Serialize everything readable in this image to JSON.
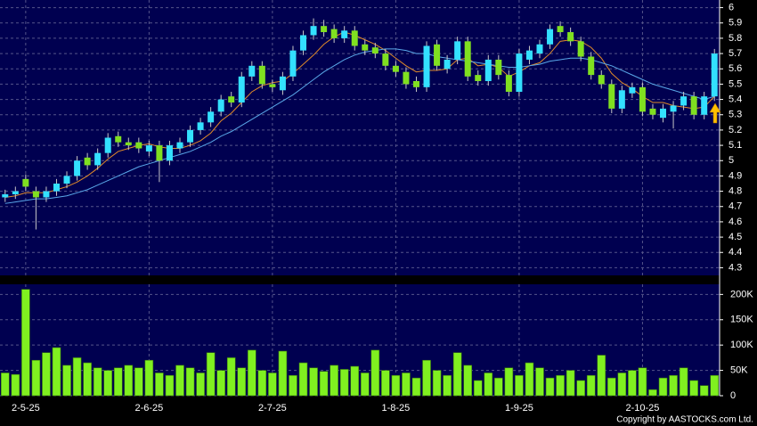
{
  "chart_data": [
    {
      "type": "candlestick",
      "open": [
        4.76,
        4.78,
        4.88,
        4.8,
        4.76,
        4.8,
        4.85,
        4.9,
        5.02,
        4.97,
        5.05,
        5.16,
        5.12,
        5.12,
        5.06,
        5.1,
        5.0,
        5.08,
        5.12,
        5.2,
        5.25,
        5.32,
        5.42,
        5.38,
        5.55,
        5.62,
        5.5,
        5.46,
        5.55,
        5.72,
        5.82,
        5.88,
        5.86,
        5.8,
        5.85,
        5.76,
        5.74,
        5.7,
        5.62,
        5.58,
        5.52,
        5.48,
        5.76,
        5.6,
        5.66,
        5.78,
        5.56,
        5.52,
        5.66,
        5.56,
        5.45,
        5.66,
        5.7,
        5.76,
        5.88,
        5.84,
        5.78,
        5.68,
        5.56,
        5.5,
        5.34,
        5.44,
        5.48,
        5.34,
        5.28,
        5.32,
        5.36,
        5.42,
        5.3,
        5.42
      ],
      "high": [
        4.81,
        4.83,
        4.91,
        4.83,
        4.83,
        4.88,
        4.93,
        5.03,
        5.05,
        5.08,
        5.18,
        5.19,
        5.15,
        5.15,
        5.13,
        5.13,
        5.13,
        5.15,
        5.23,
        5.28,
        5.35,
        5.43,
        5.45,
        5.58,
        5.65,
        5.65,
        5.53,
        5.58,
        5.75,
        5.85,
        5.93,
        5.92,
        5.89,
        5.88,
        5.88,
        5.79,
        5.77,
        5.73,
        5.65,
        5.61,
        5.55,
        5.78,
        5.79,
        5.69,
        5.81,
        5.81,
        5.59,
        5.69,
        5.69,
        5.59,
        5.73,
        5.75,
        5.79,
        5.89,
        5.91,
        5.87,
        5.81,
        5.71,
        5.59,
        5.53,
        5.49,
        5.51,
        5.51,
        5.37,
        5.37,
        5.39,
        5.45,
        5.45,
        5.45,
        5.73
      ],
      "low": [
        4.73,
        4.75,
        4.8,
        4.55,
        4.73,
        4.77,
        4.82,
        4.87,
        4.94,
        4.94,
        5.02,
        5.09,
        5.07,
        5.05,
        5.03,
        4.86,
        4.97,
        5.05,
        5.09,
        5.17,
        5.22,
        5.29,
        5.35,
        5.35,
        5.52,
        5.47,
        5.45,
        5.43,
        5.52,
        5.69,
        5.79,
        5.81,
        5.77,
        5.77,
        5.72,
        5.69,
        5.67,
        5.59,
        5.55,
        5.47,
        5.45,
        5.45,
        5.59,
        5.57,
        5.63,
        5.52,
        5.49,
        5.49,
        5.53,
        5.42,
        5.42,
        5.63,
        5.67,
        5.73,
        5.81,
        5.75,
        5.65,
        5.53,
        5.47,
        5.31,
        5.31,
        5.41,
        5.29,
        5.27,
        5.25,
        5.21,
        5.33,
        5.27,
        5.27,
        5.39
      ],
      "close": [
        4.78,
        4.8,
        4.83,
        4.76,
        4.8,
        4.85,
        4.9,
        5.0,
        4.97,
        5.05,
        5.15,
        5.12,
        5.1,
        5.08,
        5.1,
        5.0,
        5.1,
        5.12,
        5.2,
        5.25,
        5.32,
        5.4,
        5.38,
        5.55,
        5.62,
        5.5,
        5.48,
        5.55,
        5.72,
        5.82,
        5.88,
        5.84,
        5.8,
        5.85,
        5.75,
        5.72,
        5.7,
        5.62,
        5.58,
        5.5,
        5.48,
        5.75,
        5.62,
        5.66,
        5.78,
        5.55,
        5.52,
        5.66,
        5.56,
        5.45,
        5.7,
        5.72,
        5.76,
        5.86,
        5.84,
        5.78,
        5.68,
        5.56,
        5.5,
        5.34,
        5.46,
        5.48,
        5.32,
        5.3,
        5.34,
        5.36,
        5.42,
        5.3,
        5.42,
        5.7
      ],
      "up_color": "#33e0ff",
      "down_color": "#80e020",
      "series": [
        {
          "color": "#e08a2a",
          "values": [
            4.76,
            4.77,
            4.79,
            4.79,
            4.79,
            4.81,
            4.83,
            4.86,
            4.9,
            4.95,
            5.01,
            5.06,
            5.08,
            5.1,
            5.11,
            5.09,
            5.08,
            5.08,
            5.1,
            5.13,
            5.18,
            5.26,
            5.31,
            5.38,
            5.45,
            5.49,
            5.51,
            5.52,
            5.57,
            5.63,
            5.69,
            5.76,
            5.81,
            5.84,
            5.82,
            5.79,
            5.76,
            5.72,
            5.67,
            5.62,
            5.58,
            5.59,
            5.59,
            5.6,
            5.66,
            5.67,
            5.62,
            5.63,
            5.61,
            5.55,
            5.58,
            5.62,
            5.64,
            5.7,
            5.78,
            5.79,
            5.78,
            5.74,
            5.67,
            5.57,
            5.51,
            5.47,
            5.42,
            5.38,
            5.38,
            5.36,
            5.35,
            5.34,
            5.35,
            5.42
          ]
        },
        {
          "color": "#5aa8e8",
          "values": [
            4.72,
            4.73,
            4.74,
            4.75,
            4.75,
            4.76,
            4.77,
            4.79,
            4.81,
            4.84,
            4.87,
            4.9,
            4.93,
            4.96,
            4.98,
            5.0,
            5.02,
            5.04,
            5.06,
            5.09,
            5.12,
            5.16,
            5.19,
            5.23,
            5.27,
            5.31,
            5.35,
            5.39,
            5.43,
            5.48,
            5.53,
            5.58,
            5.62,
            5.66,
            5.69,
            5.71,
            5.72,
            5.73,
            5.73,
            5.72,
            5.7,
            5.7,
            5.68,
            5.67,
            5.66,
            5.65,
            5.64,
            5.63,
            5.62,
            5.61,
            5.61,
            5.62,
            5.63,
            5.65,
            5.66,
            5.67,
            5.67,
            5.66,
            5.64,
            5.62,
            5.59,
            5.56,
            5.53,
            5.5,
            5.48,
            5.46,
            5.44,
            5.42,
            5.4,
            5.42
          ]
        }
      ],
      "ylim": [
        4.25,
        6.05
      ],
      "yticks": [
        4.3,
        4.4,
        4.5,
        4.6,
        4.7,
        4.8,
        4.9,
        5,
        5.1,
        5.2,
        5.3,
        5.4,
        5.5,
        5.6,
        5.7,
        5.8,
        5.9,
        6
      ],
      "grid": true
    },
    {
      "type": "bar",
      "categories": [
        null,
        null,
        "2-5-25",
        null,
        null,
        null,
        null,
        null,
        null,
        null,
        null,
        null,
        null,
        null,
        "2-6-25",
        null,
        null,
        null,
        null,
        null,
        null,
        null,
        null,
        null,
        null,
        null,
        "2-7-25",
        null,
        null,
        null,
        null,
        null,
        null,
        null,
        null,
        null,
        null,
        null,
        "1-8-25",
        null,
        null,
        null,
        null,
        null,
        null,
        null,
        null,
        null,
        null,
        null,
        "1-9-25",
        null,
        null,
        null,
        null,
        null,
        null,
        null,
        null,
        null,
        null,
        null,
        "2-10-25",
        null,
        null,
        null,
        null,
        null,
        null,
        null
      ],
      "values": [
        45000,
        42000,
        210000,
        70000,
        85000,
        95000,
        60000,
        75000,
        65000,
        55000,
        50000,
        55000,
        60000,
        55000,
        70000,
        45000,
        40000,
        60000,
        55000,
        45000,
        85000,
        50000,
        75000,
        55000,
        90000,
        50000,
        45000,
        88000,
        40000,
        65000,
        55000,
        48000,
        60000,
        52000,
        58000,
        45000,
        90000,
        50000,
        40000,
        45000,
        35000,
        70000,
        50000,
        40000,
        85000,
        60000,
        30000,
        45000,
        35000,
        55000,
        40000,
        65000,
        55000,
        35000,
        40000,
        50000,
        30000,
        40000,
        80000,
        35000,
        45000,
        50000,
        55000,
        12000,
        35000,
        40000,
        55000,
        30000,
        20000,
        40000
      ],
      "color": "#80f020",
      "ylim": [
        0,
        220000
      ],
      "yticks": [
        {
          "value": 0,
          "label": "0"
        },
        {
          "value": 50000,
          "label": "50K"
        },
        {
          "value": 100000,
          "label": "100K"
        },
        {
          "value": 150000,
          "label": "150K"
        },
        {
          "value": 200000,
          "label": "200K"
        }
      ],
      "grid": true,
      "annotation": "Copyright by AASTOCKS.com Ltd."
    }
  ]
}
